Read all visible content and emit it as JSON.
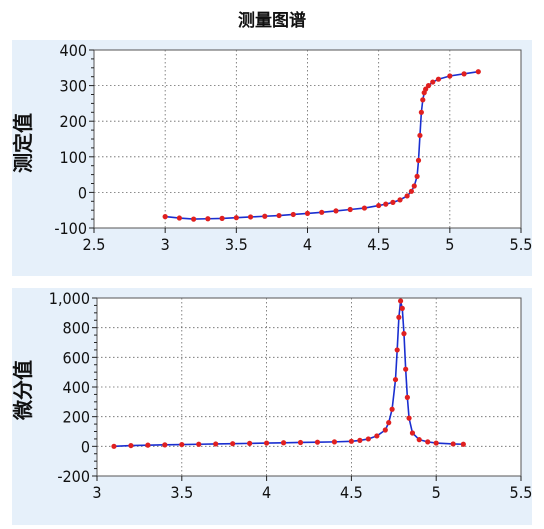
{
  "title": "测量图谱",
  "colors": {
    "line": "#1a2fd0",
    "marker": "#e02020",
    "panel": "#e6f0fa"
  },
  "chart_data": [
    {
      "type": "line",
      "name": "titration-curve",
      "ylabel": "测定值",
      "xlim": [
        2.5,
        5.5
      ],
      "ylim": [
        -100,
        400
      ],
      "xticks": [
        "2.5",
        "3",
        "3.5",
        "4",
        "4.5",
        "5",
        "5.5"
      ],
      "yticks": [
        "-100",
        "0",
        "100",
        "200",
        "300",
        "400"
      ],
      "grid": true,
      "series": [
        {
          "x": [
            3.0,
            3.1,
            3.2,
            3.3,
            3.4,
            3.5,
            3.6,
            3.7,
            3.8,
            3.9,
            4.0,
            4.1,
            4.2,
            4.3,
            4.4,
            4.5,
            4.55,
            4.6,
            4.65,
            4.7,
            4.73,
            4.75,
            4.77,
            4.78,
            4.79,
            4.8,
            4.81,
            4.82,
            4.83,
            4.85,
            4.88,
            4.92,
            5.0,
            5.1,
            5.2
          ],
          "y": [
            -68,
            -72,
            -75,
            -74,
            -73,
            -71,
            -69,
            -67,
            -65,
            -62,
            -59,
            -56,
            -52,
            -48,
            -44,
            -37,
            -33,
            -28,
            -21,
            -10,
            3,
            18,
            45,
            90,
            160,
            225,
            260,
            280,
            290,
            300,
            310,
            318,
            327,
            333,
            339
          ]
        }
      ]
    },
    {
      "type": "line",
      "name": "derivative-curve",
      "ylabel": "微分值",
      "xlim": [
        3,
        5.5
      ],
      "ylim": [
        -200,
        1000
      ],
      "xticks": [
        "3",
        "3.5",
        "4",
        "4.5",
        "5",
        "5.5"
      ],
      "yticks": [
        "-200",
        "0",
        "200",
        "400",
        "600",
        "800",
        "1,000"
      ],
      "grid": true,
      "series": [
        {
          "x": [
            3.1,
            3.2,
            3.3,
            3.4,
            3.5,
            3.6,
            3.7,
            3.8,
            3.9,
            4.0,
            4.1,
            4.2,
            4.3,
            4.4,
            4.5,
            4.55,
            4.6,
            4.65,
            4.7,
            4.72,
            4.74,
            4.76,
            4.77,
            4.78,
            4.79,
            4.8,
            4.81,
            4.82,
            4.83,
            4.84,
            4.86,
            4.9,
            4.95,
            5.0,
            5.1,
            5.16
          ],
          "y": [
            0,
            5,
            8,
            10,
            12,
            14,
            16,
            18,
            20,
            22,
            24,
            26,
            28,
            30,
            34,
            40,
            50,
            70,
            110,
            160,
            250,
            450,
            650,
            870,
            980,
            930,
            760,
            520,
            330,
            190,
            90,
            45,
            30,
            22,
            16,
            14
          ]
        }
      ]
    }
  ]
}
